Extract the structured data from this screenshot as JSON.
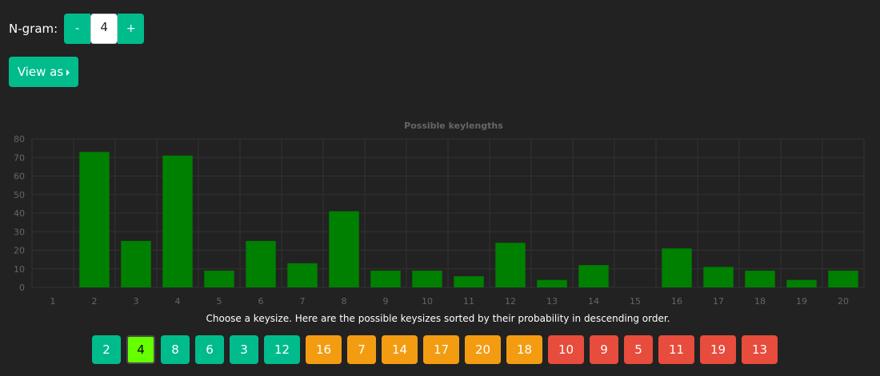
{
  "ngram": {
    "label": "N-gram:",
    "minus_label": "-",
    "plus_label": "+",
    "value": "4"
  },
  "view_as": {
    "label": "View as"
  },
  "chart_data": {
    "type": "bar",
    "title": "Possible keylengths",
    "categories": [
      "1",
      "2",
      "3",
      "4",
      "5",
      "6",
      "7",
      "8",
      "9",
      "10",
      "11",
      "12",
      "13",
      "14",
      "15",
      "16",
      "17",
      "18",
      "19",
      "20"
    ],
    "values": [
      0,
      73,
      25,
      71,
      9,
      25,
      13,
      41,
      9,
      9,
      6,
      24,
      4,
      12,
      0,
      21,
      11,
      9,
      4,
      9
    ],
    "ylim": [
      0,
      80
    ],
    "yticks": [
      0,
      10,
      20,
      30,
      40,
      50,
      60,
      70,
      80
    ],
    "xlabel": "",
    "ylabel": "",
    "grid": true,
    "bar_color": "#008000"
  },
  "caption": "Choose a keysize. Here are the possible keysizes sorted by their probability in descending order.",
  "keysizes": [
    {
      "label": "2",
      "color": "teal"
    },
    {
      "label": "4",
      "color": "teal",
      "selected": true
    },
    {
      "label": "8",
      "color": "teal"
    },
    {
      "label": "6",
      "color": "teal"
    },
    {
      "label": "3",
      "color": "teal"
    },
    {
      "label": "12",
      "color": "teal"
    },
    {
      "label": "16",
      "color": "orange"
    },
    {
      "label": "7",
      "color": "orange"
    },
    {
      "label": "14",
      "color": "orange"
    },
    {
      "label": "17",
      "color": "orange"
    },
    {
      "label": "20",
      "color": "orange"
    },
    {
      "label": "18",
      "color": "orange"
    },
    {
      "label": "10",
      "color": "red"
    },
    {
      "label": "9",
      "color": "red"
    },
    {
      "label": "5",
      "color": "red"
    },
    {
      "label": "11",
      "color": "red"
    },
    {
      "label": "19",
      "color": "red"
    },
    {
      "label": "13",
      "color": "red"
    }
  ],
  "colors": {
    "teal": "#00bc8c",
    "orange": "#f39c12",
    "red": "#e74c3c",
    "selected": "#66ff00"
  }
}
